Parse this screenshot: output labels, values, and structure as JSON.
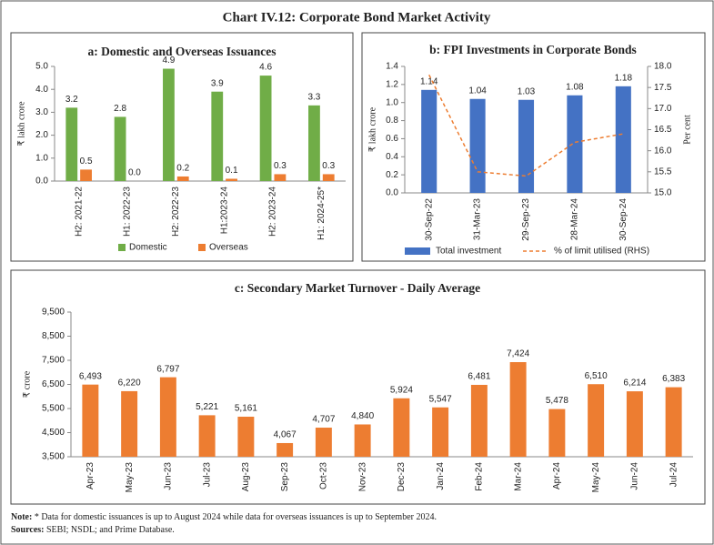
{
  "title": "Chart IV.12: Corporate Bond Market Activity",
  "chart_data": [
    {
      "type": "bar",
      "title": "a: Domestic and Overseas Issuances",
      "y_label": "₹ lakh crore",
      "categories": [
        "H2: 2021-22",
        "H1: 2022-23",
        "H2: 2022-23",
        "H1:2023-24",
        "H2: 2023-24",
        "H1: 2024-25*"
      ],
      "series": [
        {
          "name": "Domestic",
          "color": "#70ad47",
          "values": [
            3.2,
            2.8,
            4.9,
            3.9,
            4.6,
            3.3
          ]
        },
        {
          "name": "Overseas",
          "color": "#ed7d31",
          "values": [
            0.5,
            0.0,
            0.2,
            0.1,
            0.3,
            0.3
          ],
          "value_labels": [
            "0.5",
            "0.0",
            "0.2",
            "0.1",
            "0.3",
            "0.3"
          ]
        }
      ],
      "ylim": [
        0,
        5
      ],
      "yticks": [
        {
          "value": 0,
          "label": "0.0"
        },
        {
          "value": 1,
          "label": "1.0"
        },
        {
          "value": 2,
          "label": "2.0"
        },
        {
          "value": 3,
          "label": "3.0"
        },
        {
          "value": 4,
          "label": "4.0"
        },
        {
          "value": 5,
          "label": "5.0"
        }
      ],
      "legend": "bottom",
      "grid": false
    },
    {
      "type": "bar",
      "title": "b: FPI Investments in Corporate Bonds",
      "y_label": "₹ lakh crore",
      "y2_label": "Per cent",
      "categories": [
        "30-Sep-22",
        "31-Mar-23",
        "29-Sep-23",
        "28-Mar-24",
        "30-Sep-24"
      ],
      "series": [
        {
          "name": "Total investment",
          "type": "bar",
          "color": "#4472c4",
          "values": [
            1.14,
            1.04,
            1.03,
            1.08,
            1.18
          ]
        },
        {
          "name": "% of limit utilised (RHS)",
          "type": "line",
          "axis": "y2",
          "dashed": true,
          "color": "#ed7d31",
          "values": [
            17.8,
            15.5,
            15.4,
            16.2,
            16.4
          ]
        }
      ],
      "ylim": [
        0,
        1.4
      ],
      "yticks": [
        {
          "value": 0,
          "label": "0.0"
        },
        0.2,
        0.4,
        0.6,
        0.8,
        {
          "value": 1,
          "label": "1.0"
        },
        1.2,
        1.4
      ],
      "y2lim": [
        15,
        18
      ],
      "y2ticks": [
        {
          "value": 15,
          "label": "15.0"
        },
        15.5,
        {
          "value": 16,
          "label": "16.0"
        },
        16.5,
        {
          "value": 17,
          "label": "17.0"
        },
        17.5,
        {
          "value": 18,
          "label": "18.0"
        }
      ],
      "legend": "bottom",
      "grid": false
    },
    {
      "type": "bar",
      "title": "c: Secondary Market Turnover - Daily Average",
      "y_label": "₹ crore",
      "categories": [
        "Apr-23",
        "May-23",
        "Jun-23",
        "Jul-23",
        "Aug-23",
        "Sep-23",
        "Oct-23",
        "Nov-23",
        "Dec-23",
        "Jan-24",
        "Feb-24",
        "Mar-24",
        "Apr-24",
        "May-24",
        "Jun-24",
        "Jul-24"
      ],
      "values": [
        6493,
        6220,
        6797,
        5221,
        5161,
        4067,
        4707,
        4840,
        5924,
        5547,
        6481,
        7424,
        5478,
        6510,
        6214,
        6383
      ],
      "value_labels": [
        "6,493",
        "6,220",
        "6,797",
        "5,221",
        "5,161",
        "4,067",
        "4,707",
        "4,840",
        "5,924",
        "5,547",
        "6,481",
        "7,424",
        "5,478",
        "6,510",
        "6,214",
        "6,383"
      ],
      "color": "#ed7d31",
      "ylim": [
        3500,
        9500
      ],
      "yticks": [
        {
          "value": 3500,
          "label": "3,500"
        },
        {
          "value": 4500,
          "label": "4,500"
        },
        {
          "value": 5500,
          "label": "5,500"
        },
        {
          "value": 6500,
          "label": "6,500"
        },
        {
          "value": 7500,
          "label": "7,500"
        },
        {
          "value": 8500,
          "label": "8,500"
        },
        {
          "value": 9500,
          "label": "9,500"
        }
      ],
      "grid": false
    }
  ],
  "note_label": "Note:",
  "note": "* Data for domestic issuances is up to August 2024 while data for overseas issuances is up to September 2024.",
  "sources_label": "Sources:",
  "sources": "SEBI; NSDL; and Prime Database."
}
